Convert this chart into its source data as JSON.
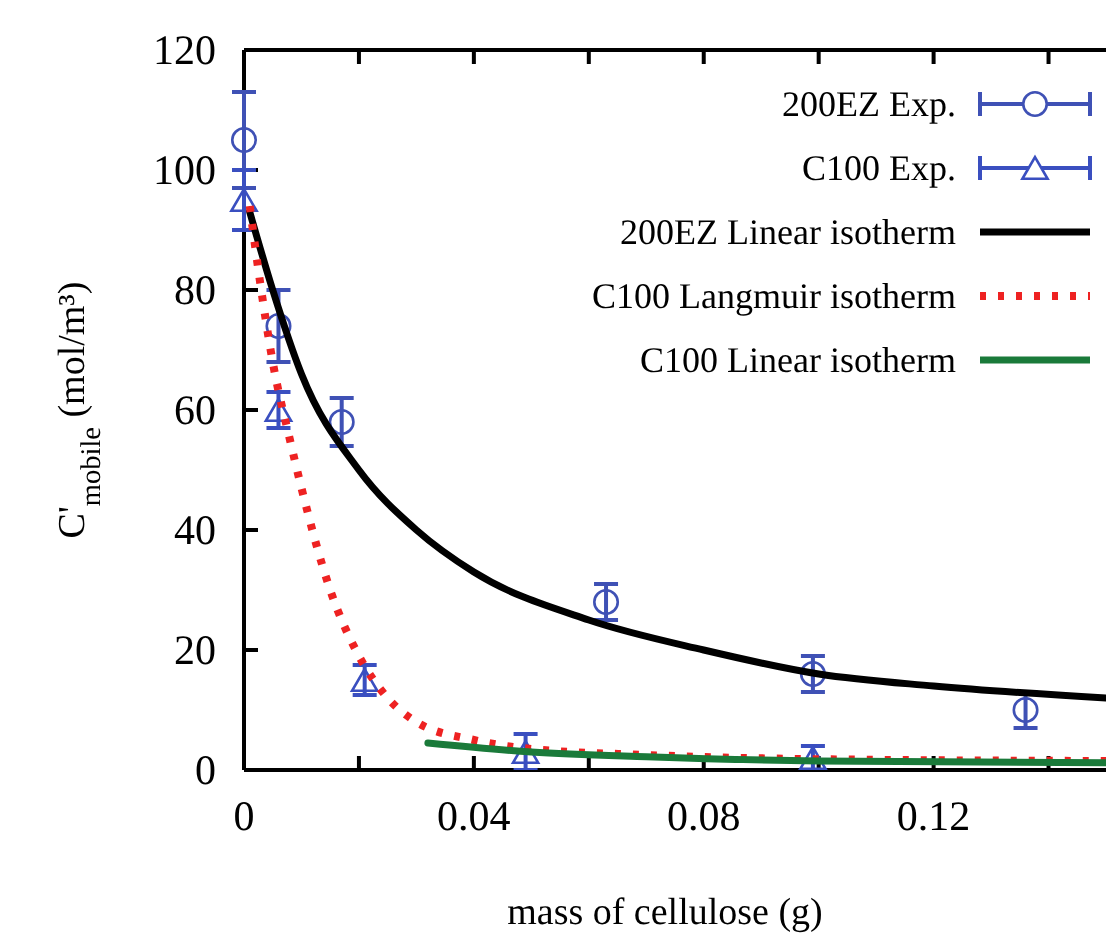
{
  "chart_data": {
    "type": "scatter",
    "xlabel": "mass of cellulose (g)",
    "ylabel": "C'$_{mobile}$ (mol/m³)",
    "xlim": [
      0,
      0.15
    ],
    "ylim": [
      0,
      120
    ],
    "xticks": [
      0,
      {
        "value": 0.02,
        "label": null
      },
      0.04,
      {
        "value": 0.06,
        "label": null
      },
      0.08,
      {
        "value": 0.1,
        "label": null
      },
      0.12,
      {
        "value": 0.14,
        "label": null
      }
    ],
    "yticks": [
      0,
      20,
      40,
      60,
      80,
      100,
      120
    ],
    "grid": false,
    "legend": "top right",
    "series": [
      {
        "name": "200EZ Exp.",
        "marker": "circle",
        "color": "#3f51b5",
        "x": [
          0,
          0.006,
          0.017,
          0.063,
          0.099,
          0.136
        ],
        "values": [
          105,
          74,
          58,
          28,
          16,
          10
        ],
        "errors": [
          8,
          6,
          4,
          3,
          3,
          3
        ]
      },
      {
        "name": "C100 Exp.",
        "marker": "triangle",
        "color": "#3a4fc0",
        "x": [
          0,
          0.006,
          0.021,
          0.049,
          0.099
        ],
        "values": [
          95,
          60,
          15,
          3,
          2
        ],
        "errors": [
          5,
          3,
          2.5,
          3,
          2
        ]
      },
      {
        "name": "200EZ Linear isotherm",
        "type": "line",
        "marker": "none",
        "line_style": "solid",
        "color": "#000000",
        "x": [
          0.001,
          0.005,
          0.01,
          0.02,
          0.03,
          0.04,
          0.06,
          0.08,
          0.1,
          0.12,
          0.15
        ],
        "values": [
          93,
          80,
          66,
          50,
          40,
          33,
          25,
          20,
          16,
          14,
          12
        ]
      },
      {
        "name": "C100 Langmuir isotherm",
        "type": "line",
        "marker": "none",
        "line_style": "dotted",
        "color": "#ee2222",
        "x": [
          0.001,
          0.003,
          0.005,
          0.008,
          0.01,
          0.015,
          0.02,
          0.025,
          0.03,
          0.04,
          0.05,
          0.07,
          0.1,
          0.15
        ],
        "values": [
          94,
          80,
          68,
          55,
          47,
          30,
          19,
          12,
          8,
          5,
          3.5,
          2.5,
          1.8,
          1.5
        ]
      },
      {
        "name": "C100 Linear isotherm",
        "type": "line",
        "marker": "none",
        "line_style": "solid",
        "color": "#1a7a3a",
        "x": [
          0.032,
          0.05,
          0.07,
          0.1,
          0.15
        ],
        "values": [
          4.5,
          3,
          2.2,
          1.5,
          1.2
        ]
      }
    ]
  }
}
